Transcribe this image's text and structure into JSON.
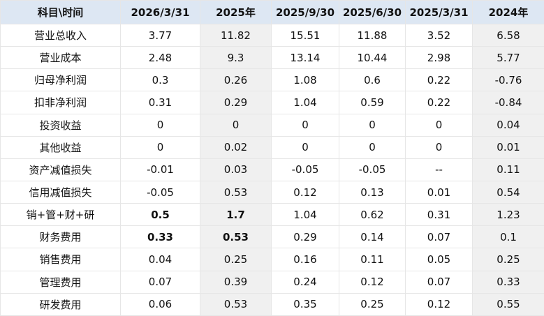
{
  "table": {
    "header": [
      "科目\\时间",
      "2026/3/31",
      "2025年",
      "2025/9/30",
      "2025/6/30",
      "2025/3/31",
      "2024年"
    ],
    "rows": [
      {
        "label": "营业总收入",
        "cells": [
          "3.77",
          "11.82",
          "15.51",
          "11.88",
          "3.52",
          "6.58"
        ]
      },
      {
        "label": "营业成本",
        "cells": [
          "2.48",
          "9.3",
          "13.14",
          "10.44",
          "2.98",
          "5.77"
        ]
      },
      {
        "label": "归母净利润",
        "cells": [
          "0.3",
          "0.26",
          "1.08",
          "0.6",
          "0.22",
          "-0.76"
        ]
      },
      {
        "label": "扣非净利润",
        "cells": [
          "0.31",
          "0.29",
          "1.04",
          "0.59",
          "0.22",
          "-0.84"
        ]
      },
      {
        "label": "投资收益",
        "cells": [
          "0",
          "0",
          "0",
          "0",
          "0",
          "0.04"
        ]
      },
      {
        "label": "其他收益",
        "cells": [
          "0",
          "0.02",
          "0",
          "0",
          "0",
          "0.01"
        ]
      },
      {
        "label": "资产减值损失",
        "cells": [
          "-0.01",
          "0.03",
          "-0.05",
          "-0.05",
          "--",
          "0.11"
        ]
      },
      {
        "label": "信用减值损失",
        "cells": [
          "-0.05",
          "0.53",
          "0.12",
          "0.13",
          "0.01",
          "0.54"
        ]
      },
      {
        "label": "销+管+财+研",
        "cells": [
          {
            "text": "0.5",
            "bold": true
          },
          {
            "text": "1.7",
            "bold": true
          },
          "1.04",
          "0.62",
          "0.31",
          "1.23"
        ]
      },
      {
        "label": "财务费用",
        "cells": [
          {
            "text": "0.33",
            "bold": true
          },
          {
            "text": "0.53",
            "bold": true
          },
          "0.29",
          "0.14",
          "0.07",
          "0.1"
        ]
      },
      {
        "label": "销售费用",
        "cells": [
          "0.04",
          "0.25",
          "0.16",
          "0.11",
          "0.05",
          "0.25"
        ]
      },
      {
        "label": "管理费用",
        "cells": [
          "0.07",
          "0.39",
          "0.24",
          "0.12",
          "0.07",
          "0.33"
        ]
      },
      {
        "label": "研发费用",
        "cells": [
          "0.06",
          "0.53",
          "0.35",
          "0.25",
          "0.12",
          "0.55"
        ]
      }
    ]
  }
}
